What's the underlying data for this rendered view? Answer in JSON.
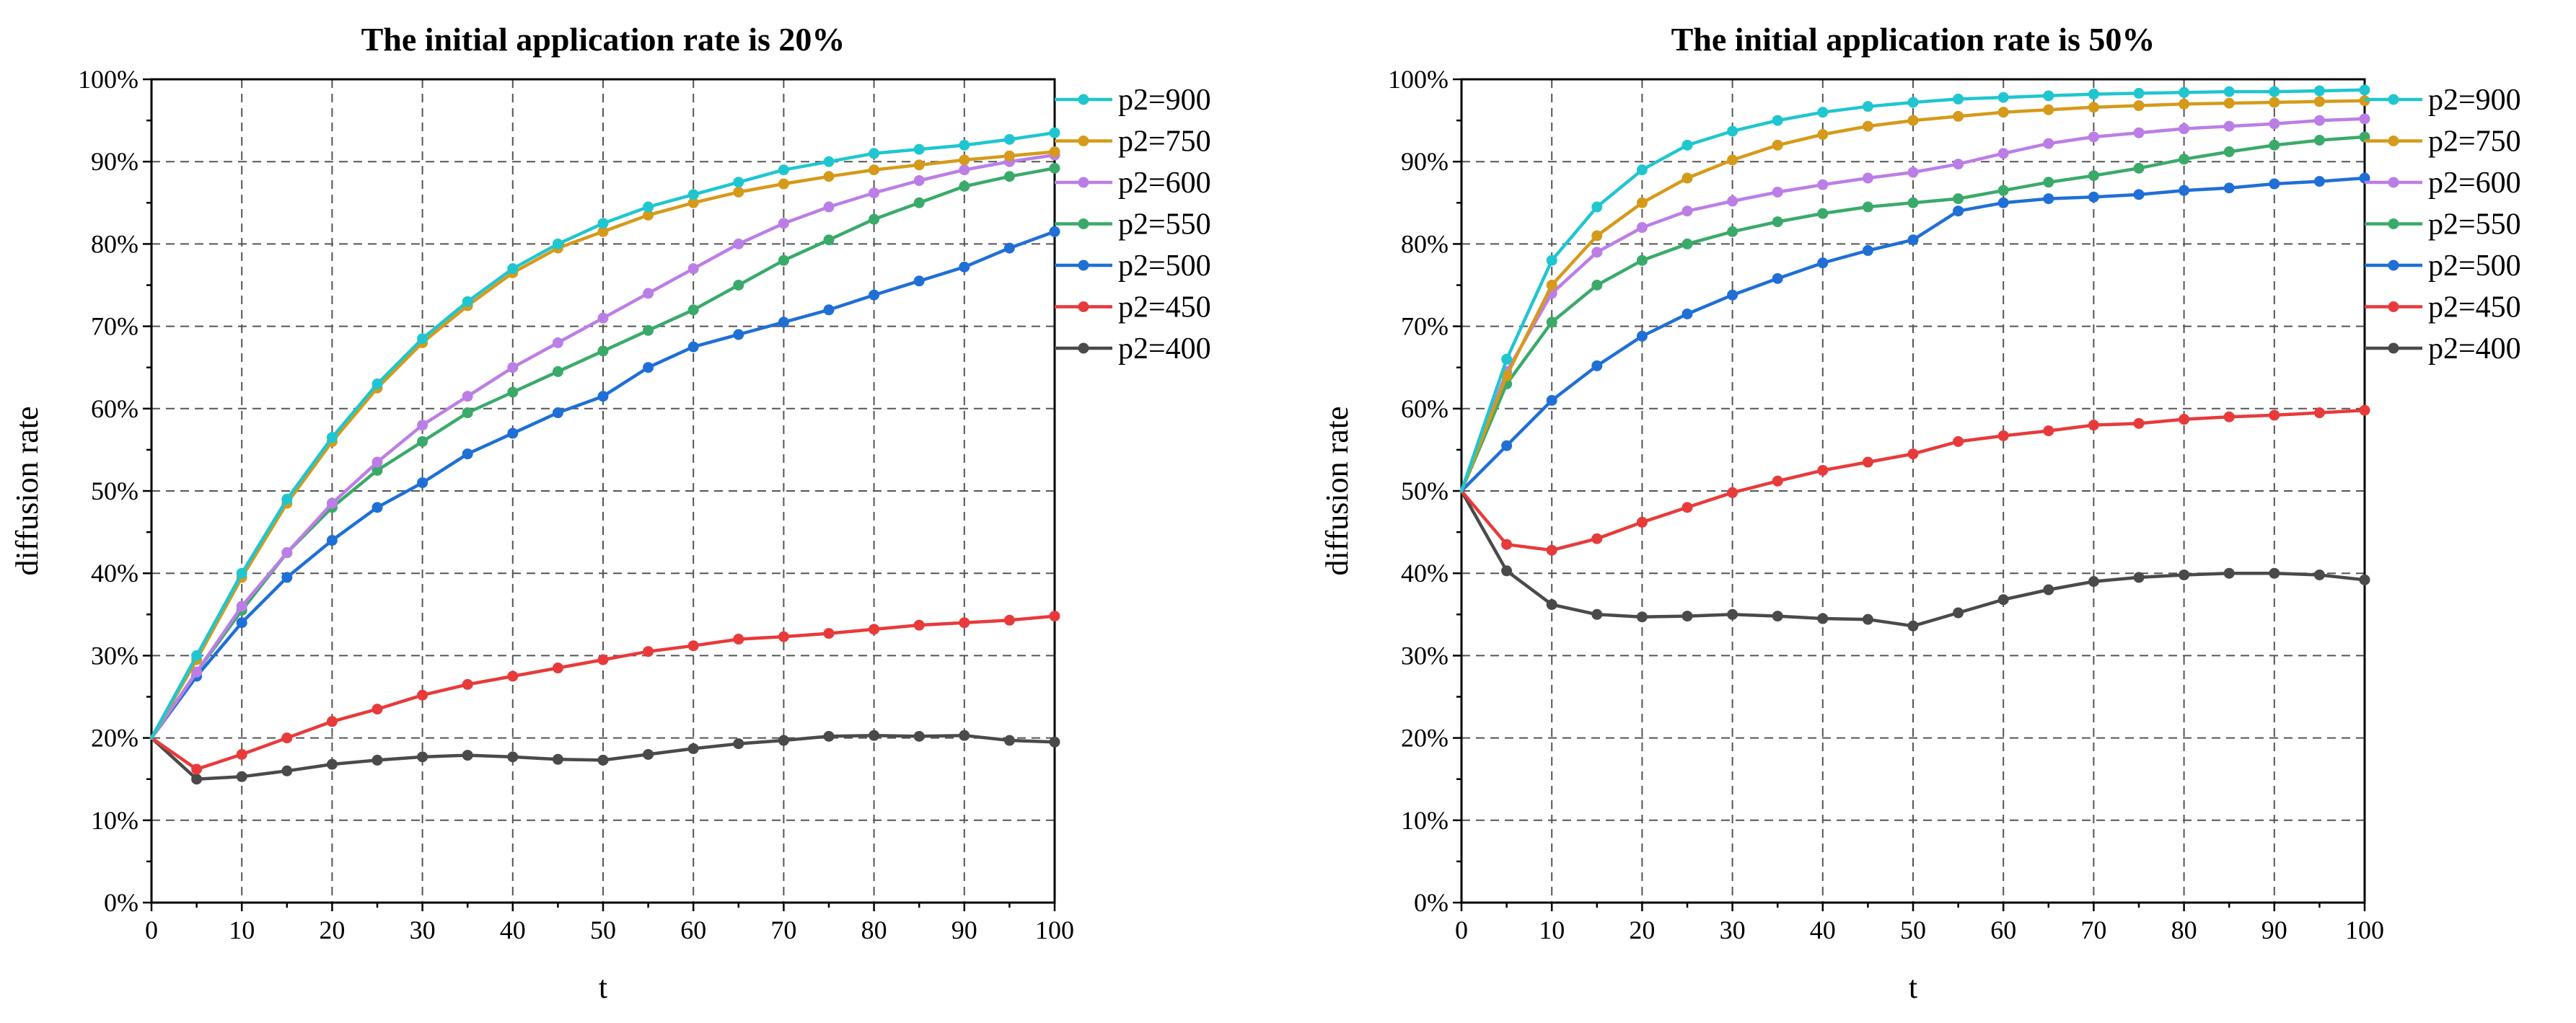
{
  "chart_data": [
    {
      "type": "line",
      "title": "The initial application rate is 20%",
      "xlabel": "t",
      "ylabel": "diffusion rate",
      "xlim": [
        0,
        100
      ],
      "ylim": [
        0,
        100
      ],
      "x_ticks": [
        "0",
        "10",
        "20",
        "30",
        "40",
        "50",
        "60",
        "70",
        "80",
        "90",
        "100"
      ],
      "y_ticks": [
        "0%",
        "10%",
        "20%",
        "30%",
        "40%",
        "50%",
        "60%",
        "70%",
        "80%",
        "90%",
        "100%"
      ],
      "grid": true,
      "legend_position": "right",
      "x": [
        0,
        5,
        10,
        15,
        20,
        25,
        30,
        35,
        40,
        45,
        50,
        55,
        60,
        65,
        70,
        75,
        80,
        85,
        90,
        95,
        100
      ],
      "series": [
        {
          "name": "p2=900",
          "color": "#1fc6cf",
          "values": [
            20,
            30,
            40,
            49,
            56.5,
            63,
            68.5,
            73,
            77,
            80,
            82.5,
            84.5,
            86,
            87.5,
            89,
            90,
            91,
            91.5,
            92,
            92.7,
            93.5
          ]
        },
        {
          "name": "p2=750",
          "color": "#d59a1a",
          "values": [
            20,
            29.5,
            39.5,
            48.5,
            56,
            62.5,
            68,
            72.5,
            76.5,
            79.5,
            81.5,
            83.5,
            85,
            86.3,
            87.3,
            88.2,
            89,
            89.6,
            90.2,
            90.7,
            91.2
          ]
        },
        {
          "name": "p2=600",
          "color": "#bb7ee6",
          "values": [
            20,
            28,
            36,
            42.5,
            48.5,
            53.5,
            58,
            61.5,
            65,
            68,
            71,
            74,
            77,
            80,
            82.5,
            84.5,
            86.2,
            87.7,
            89,
            90,
            90.8
          ]
        },
        {
          "name": "p2=550",
          "color": "#3aaa6a",
          "values": [
            20,
            28,
            35.5,
            42.5,
            48,
            52.5,
            56,
            59.5,
            62,
            64.5,
            67,
            69.5,
            72,
            75,
            78,
            80.5,
            83,
            85,
            87,
            88.2,
            89.2
          ]
        },
        {
          "name": "p2=500",
          "color": "#1f6fd6",
          "values": [
            20,
            27.5,
            34,
            39.5,
            44,
            48,
            51,
            54.5,
            57,
            59.5,
            61.5,
            65,
            67.5,
            69,
            70.5,
            72,
            73.8,
            75.5,
            77.2,
            79.5,
            81.5
          ]
        },
        {
          "name": "p2=450",
          "color": "#e83a3a",
          "values": [
            20,
            16.2,
            18,
            20,
            22,
            23.5,
            25.2,
            26.5,
            27.5,
            28.5,
            29.5,
            30.5,
            31.2,
            32,
            32.3,
            32.7,
            33.2,
            33.7,
            34,
            34.3,
            34.8
          ]
        },
        {
          "name": "p2=400",
          "color": "#4a4a4a",
          "values": [
            20,
            15,
            15.3,
            16,
            16.8,
            17.3,
            17.7,
            17.9,
            17.7,
            17.4,
            17.3,
            18,
            18.7,
            19.3,
            19.7,
            20.2,
            20.3,
            20.2,
            20.3,
            19.7,
            19.5
          ]
        }
      ]
    },
    {
      "type": "line",
      "title": "The initial application rate is 50%",
      "xlabel": "t",
      "ylabel": "diffusion rate",
      "xlim": [
        0,
        100
      ],
      "ylim": [
        0,
        100
      ],
      "x_ticks": [
        "0",
        "10",
        "20",
        "30",
        "40",
        "50",
        "60",
        "70",
        "80",
        "90",
        "100"
      ],
      "y_ticks": [
        "0%",
        "10%",
        "20%",
        "30%",
        "40%",
        "50%",
        "60%",
        "70%",
        "80%",
        "90%",
        "100%"
      ],
      "grid": true,
      "legend_position": "right",
      "x": [
        0,
        5,
        10,
        15,
        20,
        25,
        30,
        35,
        40,
        45,
        50,
        55,
        60,
        65,
        70,
        75,
        80,
        85,
        90,
        95,
        100
      ],
      "series": [
        {
          "name": "p2=900",
          "color": "#1fc6cf",
          "values": [
            50,
            66,
            78,
            84.5,
            89,
            92,
            93.7,
            95,
            96,
            96.7,
            97.2,
            97.6,
            97.8,
            98,
            98.2,
            98.3,
            98.4,
            98.5,
            98.5,
            98.6,
            98.7
          ]
        },
        {
          "name": "p2=750",
          "color": "#d59a1a",
          "values": [
            50,
            64,
            75,
            81,
            85,
            88,
            90.2,
            92,
            93.3,
            94.3,
            95,
            95.5,
            96,
            96.3,
            96.6,
            96.8,
            97,
            97.1,
            97.2,
            97.3,
            97.4
          ]
        },
        {
          "name": "p2=600",
          "color": "#bb7ee6",
          "values": [
            50,
            64.5,
            74,
            79,
            82,
            84,
            85.2,
            86.3,
            87.2,
            88,
            88.7,
            89.7,
            91,
            92.2,
            93,
            93.5,
            94,
            94.3,
            94.6,
            95,
            95.2
          ]
        },
        {
          "name": "p2=550",
          "color": "#3aaa6a",
          "values": [
            50,
            63,
            70.5,
            75,
            78,
            80,
            81.5,
            82.7,
            83.7,
            84.5,
            85,
            85.5,
            86.5,
            87.5,
            88.3,
            89.2,
            90.3,
            91.2,
            92,
            92.6,
            93
          ]
        },
        {
          "name": "p2=500",
          "color": "#1f6fd6",
          "values": [
            50,
            55.5,
            61,
            65.2,
            68.8,
            71.5,
            73.8,
            75.8,
            77.7,
            79.2,
            80.5,
            84,
            85,
            85.5,
            85.7,
            86,
            86.5,
            86.8,
            87.3,
            87.6,
            88
          ]
        },
        {
          "name": "p2=450",
          "color": "#e83a3a",
          "values": [
            50,
            43.5,
            42.8,
            44.2,
            46.2,
            48,
            49.8,
            51.2,
            52.5,
            53.5,
            54.5,
            56,
            56.7,
            57.3,
            58,
            58.2,
            58.7,
            59,
            59.2,
            59.5,
            59.8
          ]
        },
        {
          "name": "p2=400",
          "color": "#4a4a4a",
          "values": [
            50,
            40.3,
            36.2,
            35,
            34.7,
            34.8,
            35,
            34.8,
            34.5,
            34.4,
            33.6,
            35.2,
            36.8,
            38,
            39,
            39.5,
            39.8,
            40,
            40,
            39.8,
            39.2
          ]
        }
      ]
    }
  ]
}
